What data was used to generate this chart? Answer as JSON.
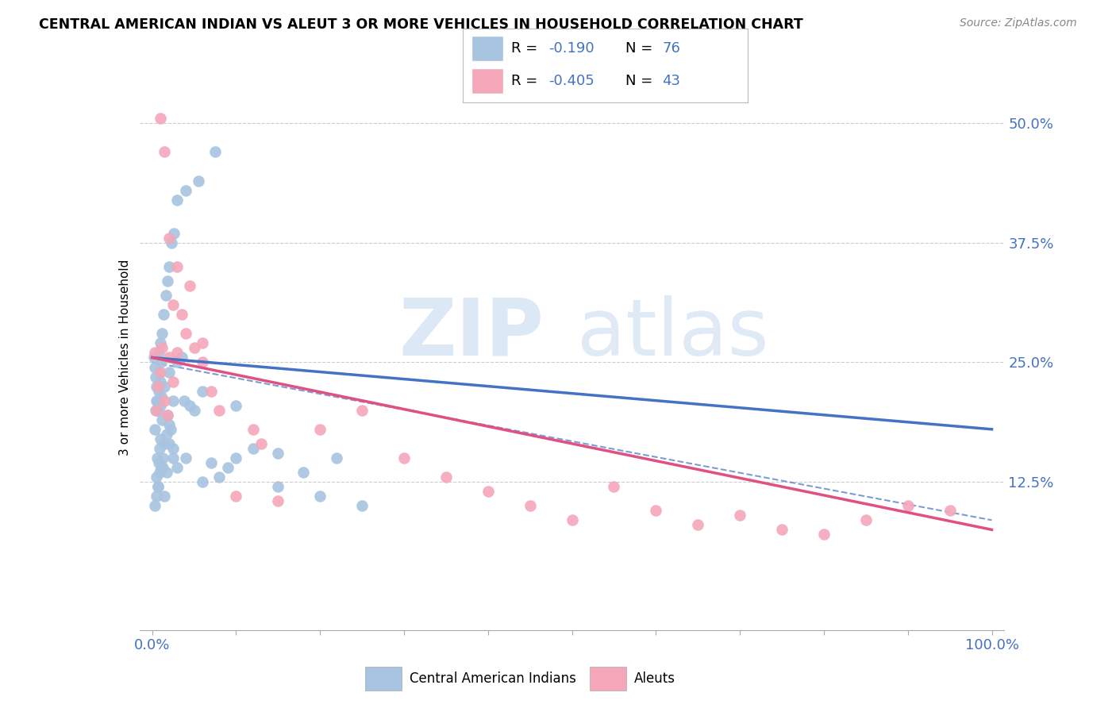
{
  "title": "CENTRAL AMERICAN INDIAN VS ALEUT 3 OR MORE VEHICLES IN HOUSEHOLD CORRELATION CHART",
  "source": "Source: ZipAtlas.com",
  "ylabel": "3 or more Vehicles in Household",
  "legend_label1": "Central American Indians",
  "legend_label2": "Aleuts",
  "R1": -0.19,
  "N1": 76,
  "R2": -0.405,
  "N2": 43,
  "color1": "#a8c4e0",
  "color2": "#f4a7b9",
  "line1_color": "#4472c4",
  "line2_color": "#e05080",
  "blue_color": "#4472c4",
  "pink_color": "#e05080",
  "line1_start_y": 25.5,
  "line1_end_y": 18.0,
  "line2_start_y": 25.5,
  "line2_end_y": 7.5,
  "dash_start_y": 25.0,
  "dash_end_y": 8.5,
  "xlim": [
    0,
    100
  ],
  "ylim": [
    0,
    52
  ],
  "ytick_vals": [
    0,
    12.5,
    25.0,
    37.5,
    50.0
  ],
  "ytick_labels": [
    "",
    "12.5%",
    "25.0%",
    "37.5%",
    "50.0%"
  ],
  "scatter1_x": [
    0.3,
    0.4,
    0.5,
    0.5,
    0.6,
    0.7,
    0.8,
    0.8,
    0.9,
    1.0,
    1.0,
    1.0,
    1.1,
    1.2,
    1.3,
    1.5,
    1.5,
    1.7,
    1.8,
    2.0,
    2.0,
    2.2,
    2.5,
    2.5,
    3.0,
    3.5,
    3.8,
    4.5,
    5.0,
    6.0,
    7.0,
    8.0,
    9.0,
    10.0,
    12.0,
    15.0,
    18.0,
    20.0,
    22.0,
    0.2,
    0.3,
    0.4,
    0.5,
    0.6,
    0.7,
    0.8,
    0.9,
    1.0,
    1.1,
    1.2,
    1.4,
    1.6,
    1.8,
    2.0,
    2.3,
    2.6,
    3.0,
    4.0,
    5.5,
    7.5,
    0.3,
    0.5,
    0.7,
    0.9,
    1.1,
    1.3,
    1.5,
    1.7,
    2.0,
    2.5,
    3.0,
    4.0,
    6.0,
    10.0,
    15.0,
    25.0
  ],
  "scatter1_y": [
    18.0,
    20.0,
    21.0,
    13.0,
    15.0,
    12.0,
    14.5,
    22.0,
    16.0,
    17.0,
    20.5,
    23.0,
    21.5,
    19.0,
    14.0,
    22.5,
    11.0,
    13.5,
    19.5,
    24.0,
    16.5,
    18.0,
    21.0,
    15.0,
    25.0,
    25.5,
    21.0,
    20.5,
    20.0,
    22.0,
    14.5,
    13.0,
    14.0,
    20.5,
    16.0,
    15.5,
    13.5,
    11.0,
    15.0,
    25.5,
    24.5,
    23.5,
    22.5,
    21.0,
    20.0,
    26.0,
    24.0,
    27.0,
    25.0,
    28.0,
    30.0,
    32.0,
    33.5,
    35.0,
    37.5,
    38.5,
    42.0,
    43.0,
    44.0,
    47.0,
    10.0,
    11.0,
    12.0,
    13.5,
    14.0,
    15.0,
    16.5,
    17.5,
    18.5,
    16.0,
    14.0,
    15.0,
    12.5,
    15.0,
    12.0,
    10.0
  ],
  "scatter2_x": [
    0.3,
    0.5,
    0.7,
    1.0,
    1.2,
    1.5,
    1.8,
    2.0,
    2.5,
    3.0,
    3.5,
    4.0,
    5.0,
    6.0,
    7.0,
    8.0,
    10.0,
    12.0,
    13.0,
    15.0,
    20.0,
    25.0,
    30.0,
    35.0,
    40.0,
    45.0,
    50.0,
    55.0,
    60.0,
    65.0,
    70.0,
    75.0,
    80.0,
    85.0,
    90.0,
    95.0,
    1.0,
    1.5,
    2.0,
    2.5,
    3.0,
    4.5,
    6.0
  ],
  "scatter2_y": [
    26.0,
    20.0,
    22.5,
    24.0,
    26.5,
    21.0,
    19.5,
    25.5,
    23.0,
    26.0,
    30.0,
    28.0,
    26.5,
    25.0,
    22.0,
    20.0,
    11.0,
    18.0,
    16.5,
    10.5,
    18.0,
    20.0,
    15.0,
    13.0,
    11.5,
    10.0,
    8.5,
    12.0,
    9.5,
    8.0,
    9.0,
    7.5,
    7.0,
    8.5,
    10.0,
    9.5,
    50.5,
    47.0,
    38.0,
    31.0,
    35.0,
    33.0,
    27.0
  ]
}
